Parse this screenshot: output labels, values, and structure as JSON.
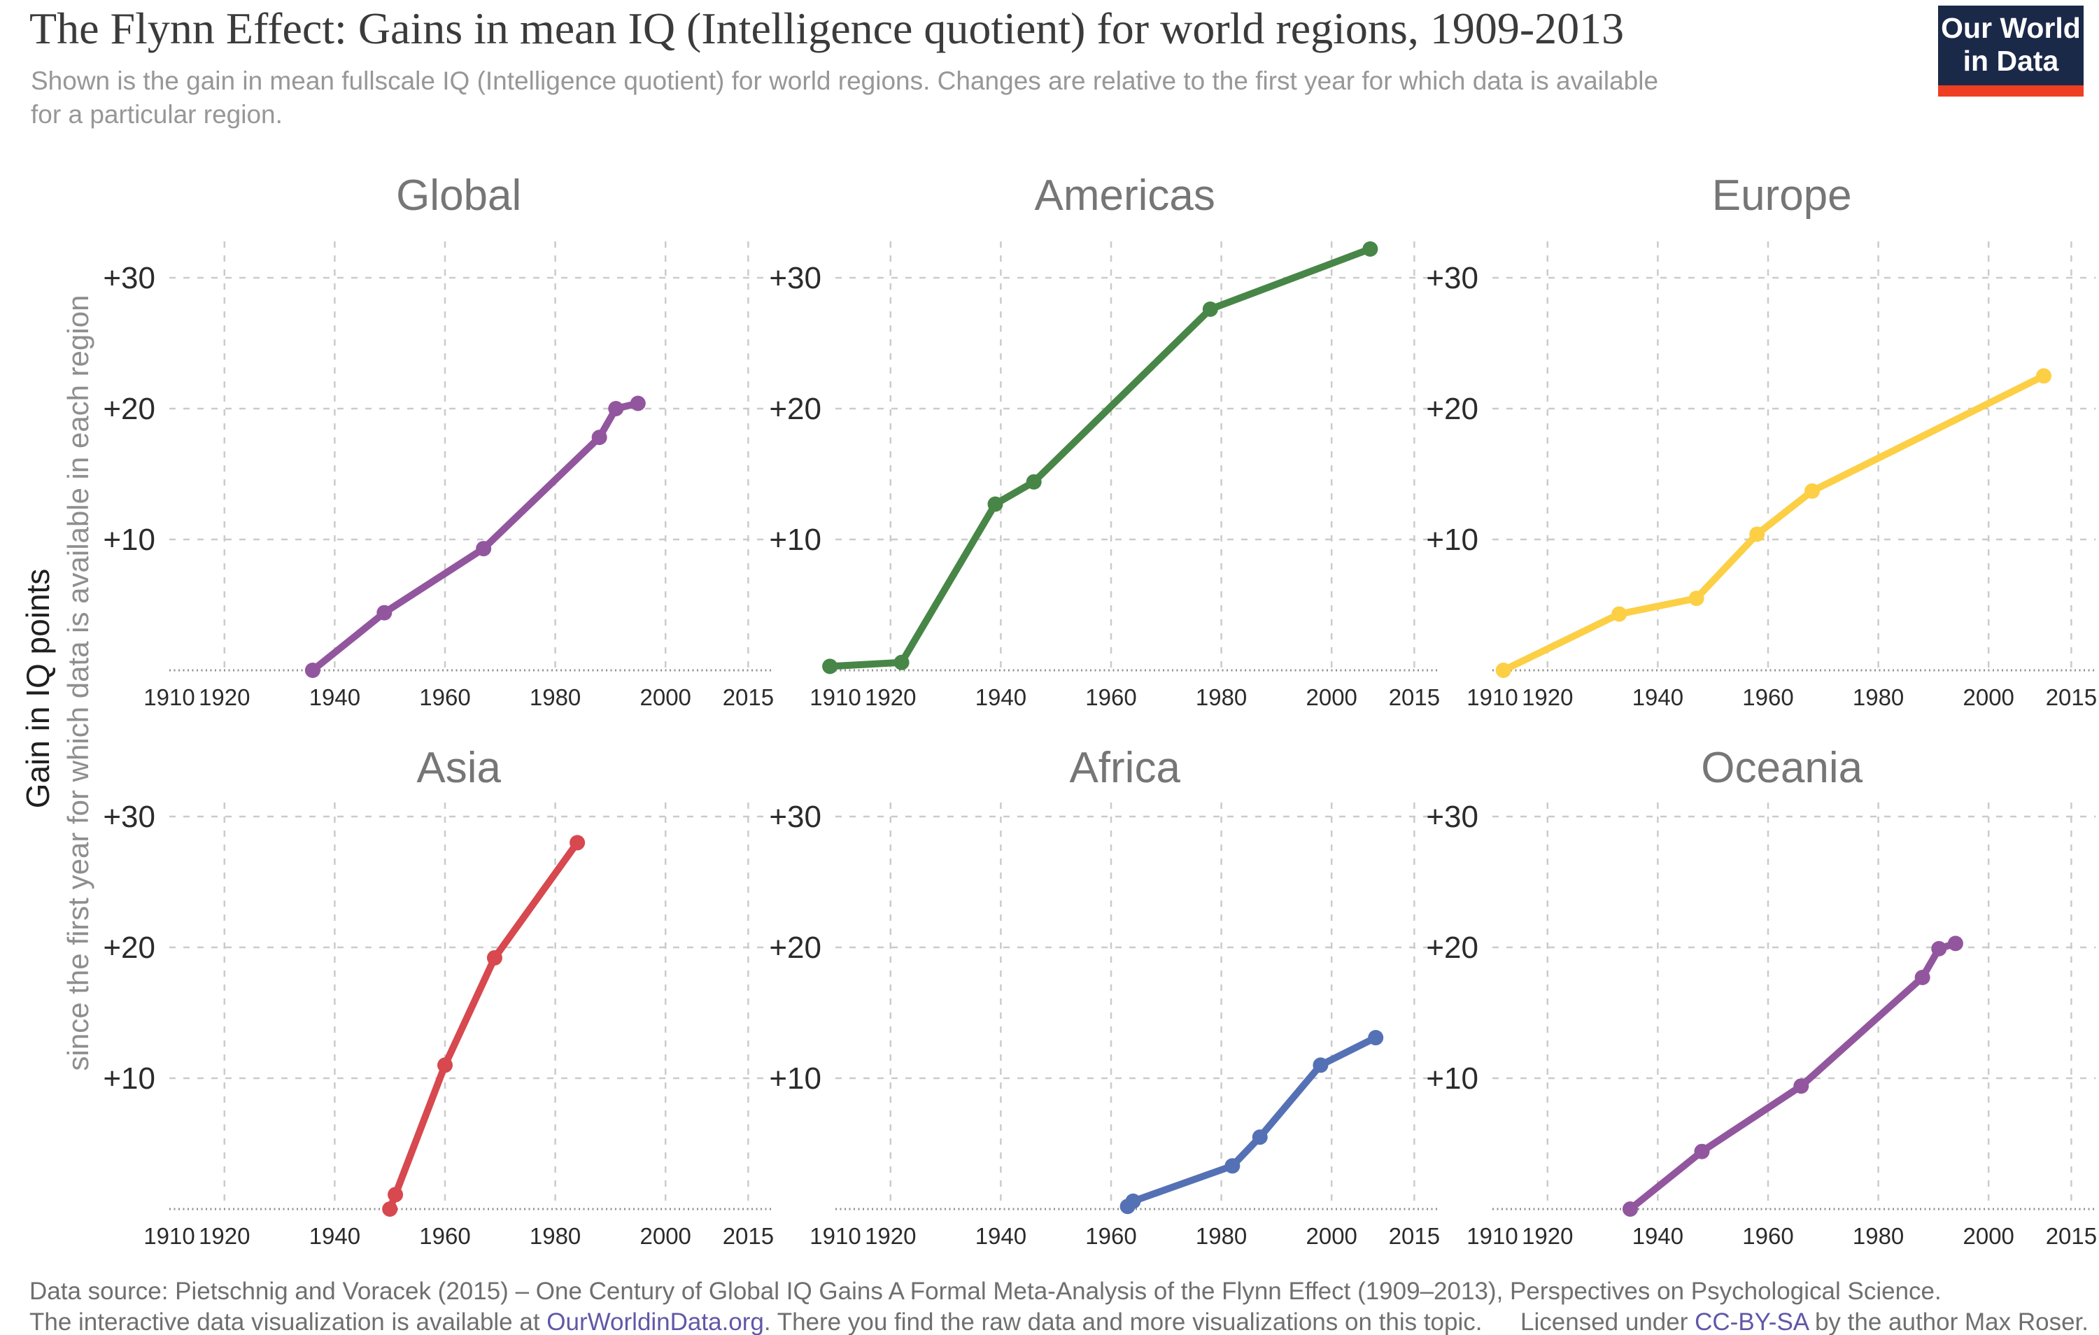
{
  "header": {
    "title": "The Flynn Effect: Gains in mean IQ (Intelligence quotient) for world regions, 1909-2013",
    "subtitle": "Shown is the gain in mean fullscale IQ (Intelligence quotient) for world regions. Changes are relative to the first year for which data is available for a particular region.",
    "logo": {
      "line1": "Our World",
      "line2": "in Data",
      "bg_color": "#1b2949",
      "bar_color": "#ee3f23"
    }
  },
  "y_axis": {
    "label_main": "Gain in IQ points",
    "label_sub": "since the first year for which data is available in each region"
  },
  "chart_data": {
    "type": "line",
    "grid": {
      "x_tick_years": [
        1910,
        1920,
        1940,
        1960,
        1980,
        2000,
        2015
      ],
      "x_tick_labels": [
        "1910",
        "1920",
        "1940",
        "1960",
        "1980",
        "2000",
        "2015"
      ],
      "x_gridline_years": [
        1920,
        1940,
        1960,
        1980,
        2000,
        2015
      ],
      "y_ticks": [
        {
          "v": 10,
          "label": "+10"
        },
        {
          "v": 20,
          "label": "+20"
        },
        {
          "v": 30,
          "label": "+30"
        }
      ],
      "xlim": [
        1909,
        2019
      ],
      "ylim": [
        0,
        33
      ],
      "grid_on": true
    },
    "panels": [
      {
        "title": "Global",
        "color": "#92569e",
        "points": [
          [
            1936,
            0
          ],
          [
            1949,
            4.4
          ],
          [
            1967,
            9.3
          ],
          [
            1988,
            17.8
          ],
          [
            1991,
            20.0
          ],
          [
            1995,
            20.4
          ]
        ]
      },
      {
        "title": "Americas",
        "color": "#478647",
        "points": [
          [
            1909,
            0.3
          ],
          [
            1922,
            0.6
          ],
          [
            1939,
            12.7
          ],
          [
            1946,
            14.4
          ],
          [
            1978,
            27.6
          ],
          [
            2007,
            32.2
          ]
        ]
      },
      {
        "title": "Europe",
        "color": "#fccf45",
        "points": [
          [
            1912,
            0
          ],
          [
            1933,
            4.3
          ],
          [
            1947,
            5.5
          ],
          [
            1958,
            10.4
          ],
          [
            1968,
            13.7
          ],
          [
            2010,
            22.5
          ]
        ]
      },
      {
        "title": "Asia",
        "color": "#d7484f",
        "points": [
          [
            1950,
            0
          ],
          [
            1951,
            1.1
          ],
          [
            1960,
            11.0
          ],
          [
            1969,
            19.2
          ],
          [
            1984,
            28.0
          ]
        ]
      },
      {
        "title": "Africa",
        "color": "#5571b5",
        "points": [
          [
            1963,
            0.2
          ],
          [
            1964,
            0.6
          ],
          [
            1982,
            3.3
          ],
          [
            1987,
            5.5
          ],
          [
            1998,
            11.0
          ],
          [
            2008,
            13.1
          ]
        ]
      },
      {
        "title": "Oceania",
        "color": "#92569e",
        "points": [
          [
            1935,
            0
          ],
          [
            1948,
            4.4
          ],
          [
            1966,
            9.4
          ],
          [
            1988,
            17.7
          ],
          [
            1991,
            19.9
          ],
          [
            1994,
            20.3
          ]
        ]
      }
    ]
  },
  "footer": {
    "line1": "Data source: Pietschnig and Voracek (2015) – One Century of Global IQ Gains A Formal Meta-Analysis of the Flynn Effect (1909–2013), Perspectives on Psychological Science.",
    "line2_prefix": "The interactive data visualization is available at ",
    "line2_link": "OurWorldinData.org",
    "line2_suffix": ". There you find the raw data and more visualizations on this topic.",
    "license_prefix": "Licensed under ",
    "license_link": "CC-BY-SA",
    "license_suffix": " by the author Max Roser."
  }
}
